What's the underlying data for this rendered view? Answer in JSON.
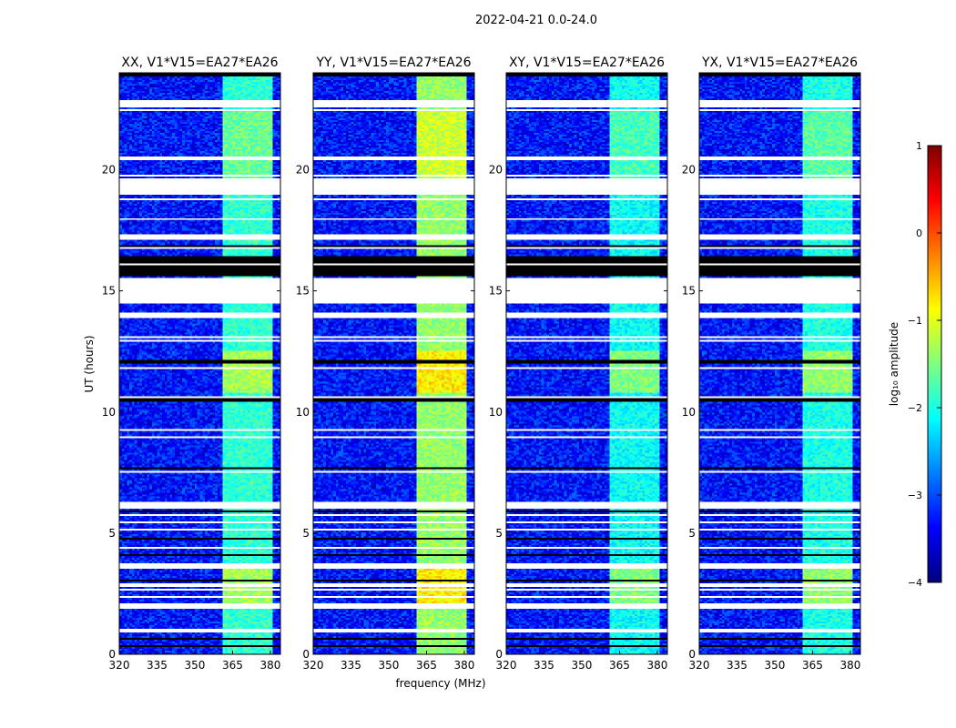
{
  "chart_data": {
    "type": "heatmap",
    "title": "2022-04-21 0.0-24.0",
    "xlabel": "frequency (MHz)",
    "ylabel": "UT (hours)",
    "xlim": [
      320,
      384
    ],
    "ylim": [
      0,
      24
    ],
    "xticks": [
      320,
      335,
      350,
      365,
      380
    ],
    "yticks": [
      0,
      5,
      10,
      15,
      20
    ],
    "panels": [
      {
        "title": "XX, V1*V15=EA27*EA26",
        "band_level": -1.7
      },
      {
        "title": "YY, V1*V15=EA27*EA26",
        "band_level": -1.2
      },
      {
        "title": "XY, V1*V15=EA27*EA26",
        "band_level": -1.9
      },
      {
        "title": "YX, V1*V15=EA27*EA26",
        "band_level": -1.8
      }
    ],
    "background_level": -3.3,
    "rfi_subbands_mhz": [
      [
        361,
        365.5
      ],
      [
        366.5,
        370.5
      ],
      [
        371.5,
        375.5
      ],
      [
        376.5,
        380.5
      ]
    ],
    "flagged_ut_ranges": [
      [
        22.55,
        22.85
      ],
      [
        19.0,
        19.65
      ],
      [
        17.1,
        17.3
      ],
      [
        14.5,
        15.45
      ],
      [
        13.9,
        14.1
      ],
      [
        11.75,
        11.85
      ],
      [
        6.0,
        6.3
      ],
      [
        3.5,
        3.75
      ],
      [
        2.8,
        2.95
      ],
      [
        1.9,
        2.1
      ]
    ],
    "zero_ut_ranges": [
      [
        23.85,
        24.0
      ],
      [
        15.6,
        16.4
      ],
      [
        12.0,
        12.1
      ],
      [
        10.45,
        10.55
      ],
      [
        5.85,
        5.95
      ],
      [
        3.0,
        3.05
      ],
      [
        0.9,
        1.0
      ],
      [
        0.3,
        0.35
      ]
    ],
    "colorbar": {
      "label": "log₁₀ amplitude",
      "vmin": -4,
      "vmax": 1,
      "ticks": [
        "1",
        "0",
        "−1",
        "−2",
        "−3",
        "−4"
      ],
      "colormap": "jet"
    }
  }
}
